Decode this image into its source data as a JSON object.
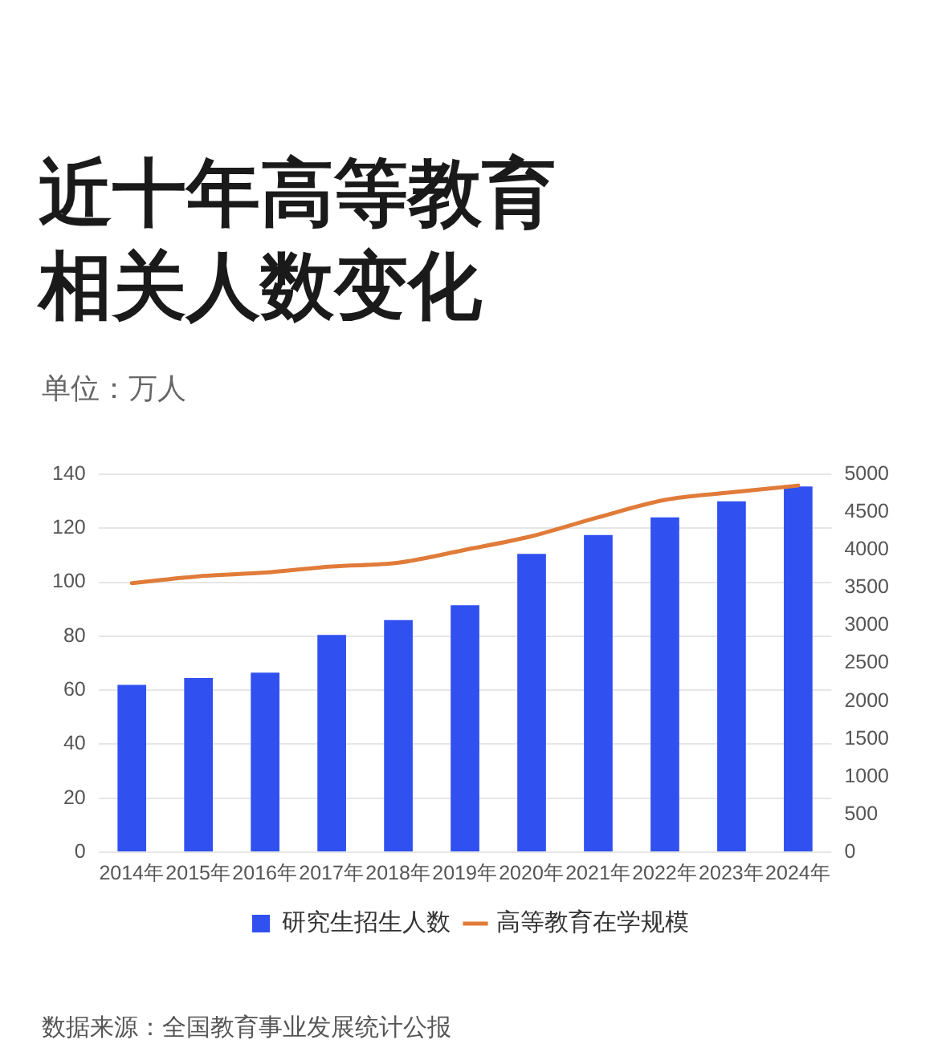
{
  "chart_data": {
    "type": "bar",
    "title": "近十年高等教育相关人数变化",
    "subtitle": "单位：万人",
    "categories": [
      "2014年",
      "2015年",
      "2016年",
      "2017年",
      "2018年",
      "2019年",
      "2020年",
      "2021年",
      "2022年",
      "2023年",
      "2024年"
    ],
    "series": [
      {
        "name": "研究生招生人数",
        "color": "#3050f0",
        "values": [
          62,
          64.5,
          66.5,
          80.5,
          86,
          91.5,
          110.5,
          117.5,
          124,
          130,
          135.5
        ]
      },
      {
        "name": "高等教育在学规模",
        "type": "line",
        "axis": "y2",
        "color": "#e07b39",
        "values": [
          3560,
          3650,
          3700,
          3780,
          3830,
          4000,
          4180,
          4430,
          4660,
          4760,
          4850
        ]
      }
    ],
    "ylim": [
      0,
      140
    ],
    "yticks": [
      0,
      20,
      40,
      60,
      80,
      100,
      120,
      140
    ],
    "y2lim": [
      0,
      5000
    ],
    "y2ticks": [
      0,
      500,
      1000,
      1500,
      2000,
      2500,
      3000,
      3500,
      4000,
      4500,
      5000
    ],
    "grid": "y",
    "legend": "bottom",
    "marker": "none",
    "line_style": "solid",
    "annotations": [
      "数据来源：全国教育事业发展统计公报"
    ]
  }
}
